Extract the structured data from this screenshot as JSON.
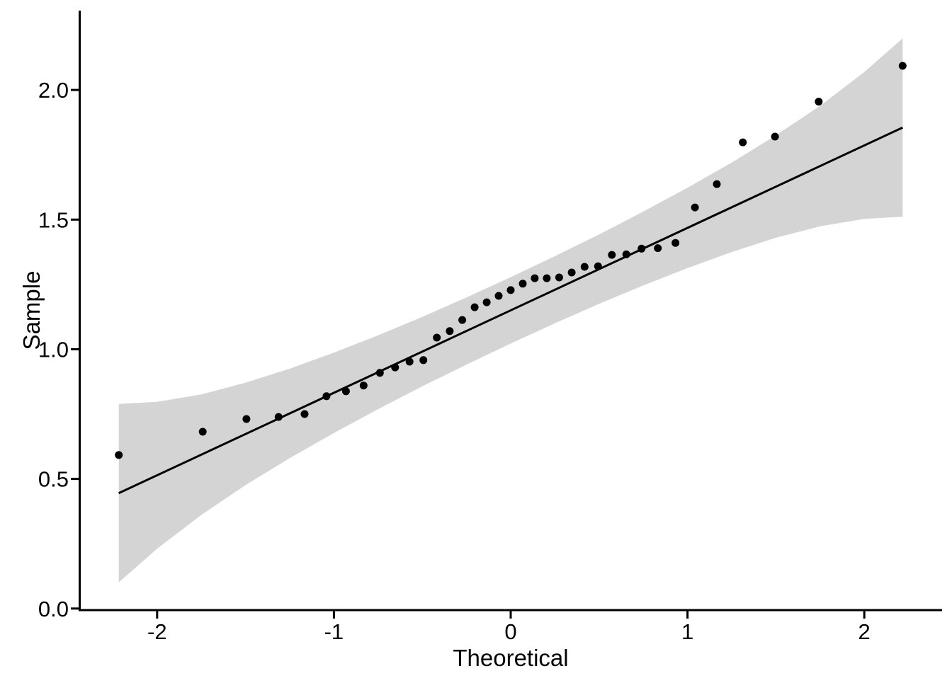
{
  "chart_data": {
    "type": "scatter",
    "subtype": "qq-plot",
    "title": "",
    "xlabel": "Theoretical",
    "ylabel": "Sample",
    "grid": false,
    "legend": false,
    "xlim": [
      -2.44,
      2.44
    ],
    "ylim": [
      -0.006,
      2.306
    ],
    "x_ticks": [
      -2,
      -1,
      0,
      1,
      2
    ],
    "x_tick_labels": [
      "-2",
      "-1",
      "0",
      "1",
      "2"
    ],
    "y_ticks": [
      0.0,
      0.5,
      1.0,
      1.5,
      2.0
    ],
    "y_tick_labels": [
      "0.0",
      "0.5",
      "1.0",
      "1.5",
      "2.0"
    ],
    "points": [
      [
        -2.217,
        0.592
      ],
      [
        -1.742,
        0.682
      ],
      [
        -1.495,
        0.731
      ],
      [
        -1.313,
        0.739
      ],
      [
        -1.166,
        0.75
      ],
      [
        -1.042,
        0.819
      ],
      [
        -0.932,
        0.838
      ],
      [
        -0.832,
        0.86
      ],
      [
        -0.74,
        0.909
      ],
      [
        -0.654,
        0.93
      ],
      [
        -0.572,
        0.952
      ],
      [
        -0.494,
        0.958
      ],
      [
        -0.418,
        1.045
      ],
      [
        -0.345,
        1.07
      ],
      [
        -0.274,
        1.113
      ],
      [
        -0.204,
        1.162
      ],
      [
        -0.136,
        1.181
      ],
      [
        -0.068,
        1.206
      ],
      [
        0.0,
        1.228
      ],
      [
        0.068,
        1.253
      ],
      [
        0.136,
        1.274
      ],
      [
        0.204,
        1.274
      ],
      [
        0.274,
        1.277
      ],
      [
        0.345,
        1.296
      ],
      [
        0.418,
        1.318
      ],
      [
        0.494,
        1.32
      ],
      [
        0.572,
        1.364
      ],
      [
        0.654,
        1.366
      ],
      [
        0.74,
        1.388
      ],
      [
        0.832,
        1.39
      ],
      [
        0.932,
        1.41
      ],
      [
        1.042,
        1.547
      ],
      [
        1.166,
        1.637
      ],
      [
        1.313,
        1.798
      ],
      [
        1.495,
        1.82
      ],
      [
        1.742,
        1.955
      ],
      [
        2.217,
        2.093
      ]
    ],
    "ref_line": {
      "intercept": 1.15,
      "slope": 0.318,
      "x_start": -2.217,
      "x_end": 2.217
    },
    "confidence_band": [
      [
        -2.217,
        0.101,
        0.789
      ],
      [
        -2.0,
        0.231,
        0.797
      ],
      [
        -1.75,
        0.361,
        0.826
      ],
      [
        -1.5,
        0.476,
        0.871
      ],
      [
        -1.25,
        0.58,
        0.925
      ],
      [
        -1.0,
        0.677,
        0.987
      ],
      [
        -0.75,
        0.769,
        1.054
      ],
      [
        -0.5,
        0.857,
        1.125
      ],
      [
        -0.25,
        0.941,
        1.2
      ],
      [
        0.0,
        1.022,
        1.278
      ],
      [
        0.25,
        1.1,
        1.359
      ],
      [
        0.5,
        1.175,
        1.443
      ],
      [
        0.75,
        1.246,
        1.531
      ],
      [
        1.0,
        1.313,
        1.623
      ],
      [
        1.25,
        1.375,
        1.72
      ],
      [
        1.5,
        1.43,
        1.825
      ],
      [
        1.75,
        1.474,
        1.939
      ],
      [
        2.0,
        1.503,
        2.069
      ],
      [
        2.217,
        1.511,
        2.199
      ]
    ],
    "colors": {
      "point": "#000000",
      "reference_line": "#000000",
      "band_fill": "#d4d4d4",
      "axis": "#000000",
      "text": "#000000",
      "background": "#ffffff"
    }
  }
}
